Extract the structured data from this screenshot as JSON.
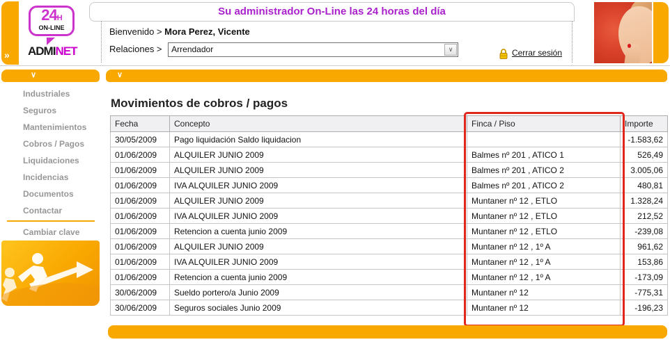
{
  "colors": {
    "accent_orange": "#F9A800",
    "brand_magenta": "#CC33CC",
    "banner_purple": "#AA22CC",
    "highlight_red": "#E1261C"
  },
  "header": {
    "collapse_glyph": "»",
    "logo": {
      "big": "24",
      "sub": "H",
      "online": "ON-LINE",
      "brand_left": "ADMI",
      "brand_right": "NET"
    },
    "banner_text": "Su administrador On-Line las 24 horas del día",
    "welcome_label": "Bienvenido >",
    "welcome_name": "Mora Perez, Vicente",
    "relations_label": "Relaciones >",
    "relations_value": "Arrendador",
    "select_arrow": "∨",
    "logout_label": "Cerrar sesión"
  },
  "section_bars": {
    "chevron_glyph": "∨"
  },
  "sidebar": {
    "items": [
      {
        "label": "Industriales"
      },
      {
        "label": "Seguros"
      },
      {
        "label": "Mantenimientos"
      },
      {
        "label": "Cobros / Pagos"
      },
      {
        "label": "Liquidaciones"
      },
      {
        "label": "Incidencias"
      },
      {
        "label": "Documentos"
      },
      {
        "label": "Contactar"
      }
    ],
    "change_password_label": "Cambiar clave"
  },
  "main": {
    "title": "Movimientos de cobros / pagos",
    "table": {
      "columns": [
        "Fecha",
        "Concepto",
        "Finca / Piso",
        "Importe"
      ],
      "rows": [
        [
          "30/05/2009",
          "Pago liquidación Saldo liquidacion",
          "",
          "-1.583,62"
        ],
        [
          "01/06/2009",
          "ALQUILER JUNIO 2009",
          "Balmes nº 201 , ATICO 1",
          "526,49"
        ],
        [
          "01/06/2009",
          "ALQUILER JUNIO 2009",
          "Balmes nº 201 , ATICO 2",
          "3.005,06"
        ],
        [
          "01/06/2009",
          "IVA ALQUILER JUNIO 2009",
          "Balmes nº 201 , ATICO 2",
          "480,81"
        ],
        [
          "01/06/2009",
          "ALQUILER JUNIO 2009",
          "Muntaner nº 12 , ETLO",
          "1.328,24"
        ],
        [
          "01/06/2009",
          "IVA ALQUILER JUNIO 2009",
          "Muntaner nº 12 , ETLO",
          "212,52"
        ],
        [
          "01/06/2009",
          "Retencion a cuenta junio 2009",
          "Muntaner nº 12 , ETLO",
          "-239,08"
        ],
        [
          "01/06/2009",
          "ALQUILER JUNIO 2009",
          "Muntaner nº 12 , 1º A",
          "961,62"
        ],
        [
          "01/06/2009",
          "IVA ALQUILER JUNIO 2009",
          "Muntaner nº 12 , 1º A",
          "153,86"
        ],
        [
          "01/06/2009",
          "Retencion a cuenta junio 2009",
          "Muntaner nº 12 , 1º A",
          "-173,09"
        ],
        [
          "30/06/2009",
          "Sueldo portero/a Junio 2009",
          "Muntaner nº 12",
          "-775,31"
        ],
        [
          "30/06/2009",
          "Seguros sociales Junio 2009",
          "Muntaner nº 12",
          "-196,23"
        ]
      ]
    }
  }
}
